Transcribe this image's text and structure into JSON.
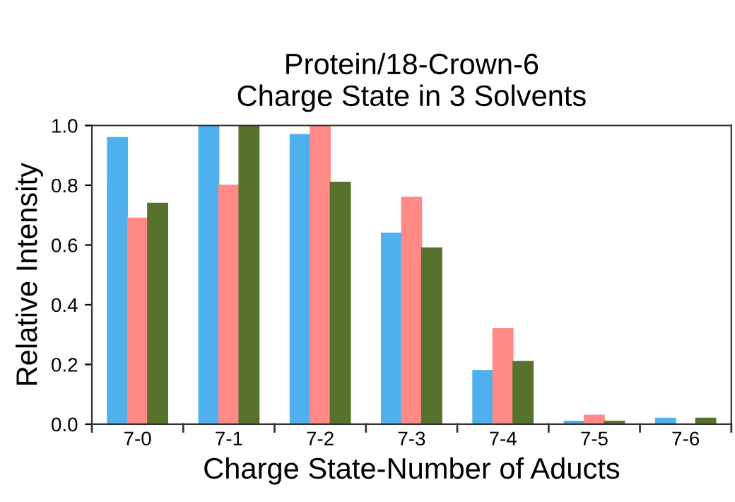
{
  "chart_data": {
    "type": "bar",
    "title": "Protein/18-Crown-6\nCharge State in 3 Solvents",
    "xlabel": "Charge State-Number of Aducts",
    "ylabel": "Relative Intensity",
    "categories": [
      "7-0",
      "7-1",
      "7-2",
      "7-3",
      "7-4",
      "7-5",
      "7-6"
    ],
    "series": [
      {
        "color": "#4fb0ee",
        "values": [
          0.96,
          1.0,
          0.97,
          0.64,
          0.18,
          0.01,
          0.02
        ]
      },
      {
        "color": "#ff8a86",
        "values": [
          0.69,
          0.8,
          1.0,
          0.76,
          0.32,
          0.03,
          0.0
        ]
      },
      {
        "color": "#56722c",
        "values": [
          0.74,
          1.0,
          0.81,
          0.59,
          0.21,
          0.01,
          0.02
        ]
      }
    ],
    "ylim": [
      0,
      1.0
    ],
    "yticks": [
      {
        "value": 0,
        "label": "0.0"
      },
      {
        "value": 0.2,
        "label": "0.2"
      },
      {
        "value": 0.4,
        "label": "0.4"
      },
      {
        "value": 0.6,
        "label": "0.6"
      },
      {
        "value": 0.8,
        "label": "0.8"
      },
      {
        "value": 1.0,
        "label": "1.0"
      }
    ],
    "grid": false
  }
}
